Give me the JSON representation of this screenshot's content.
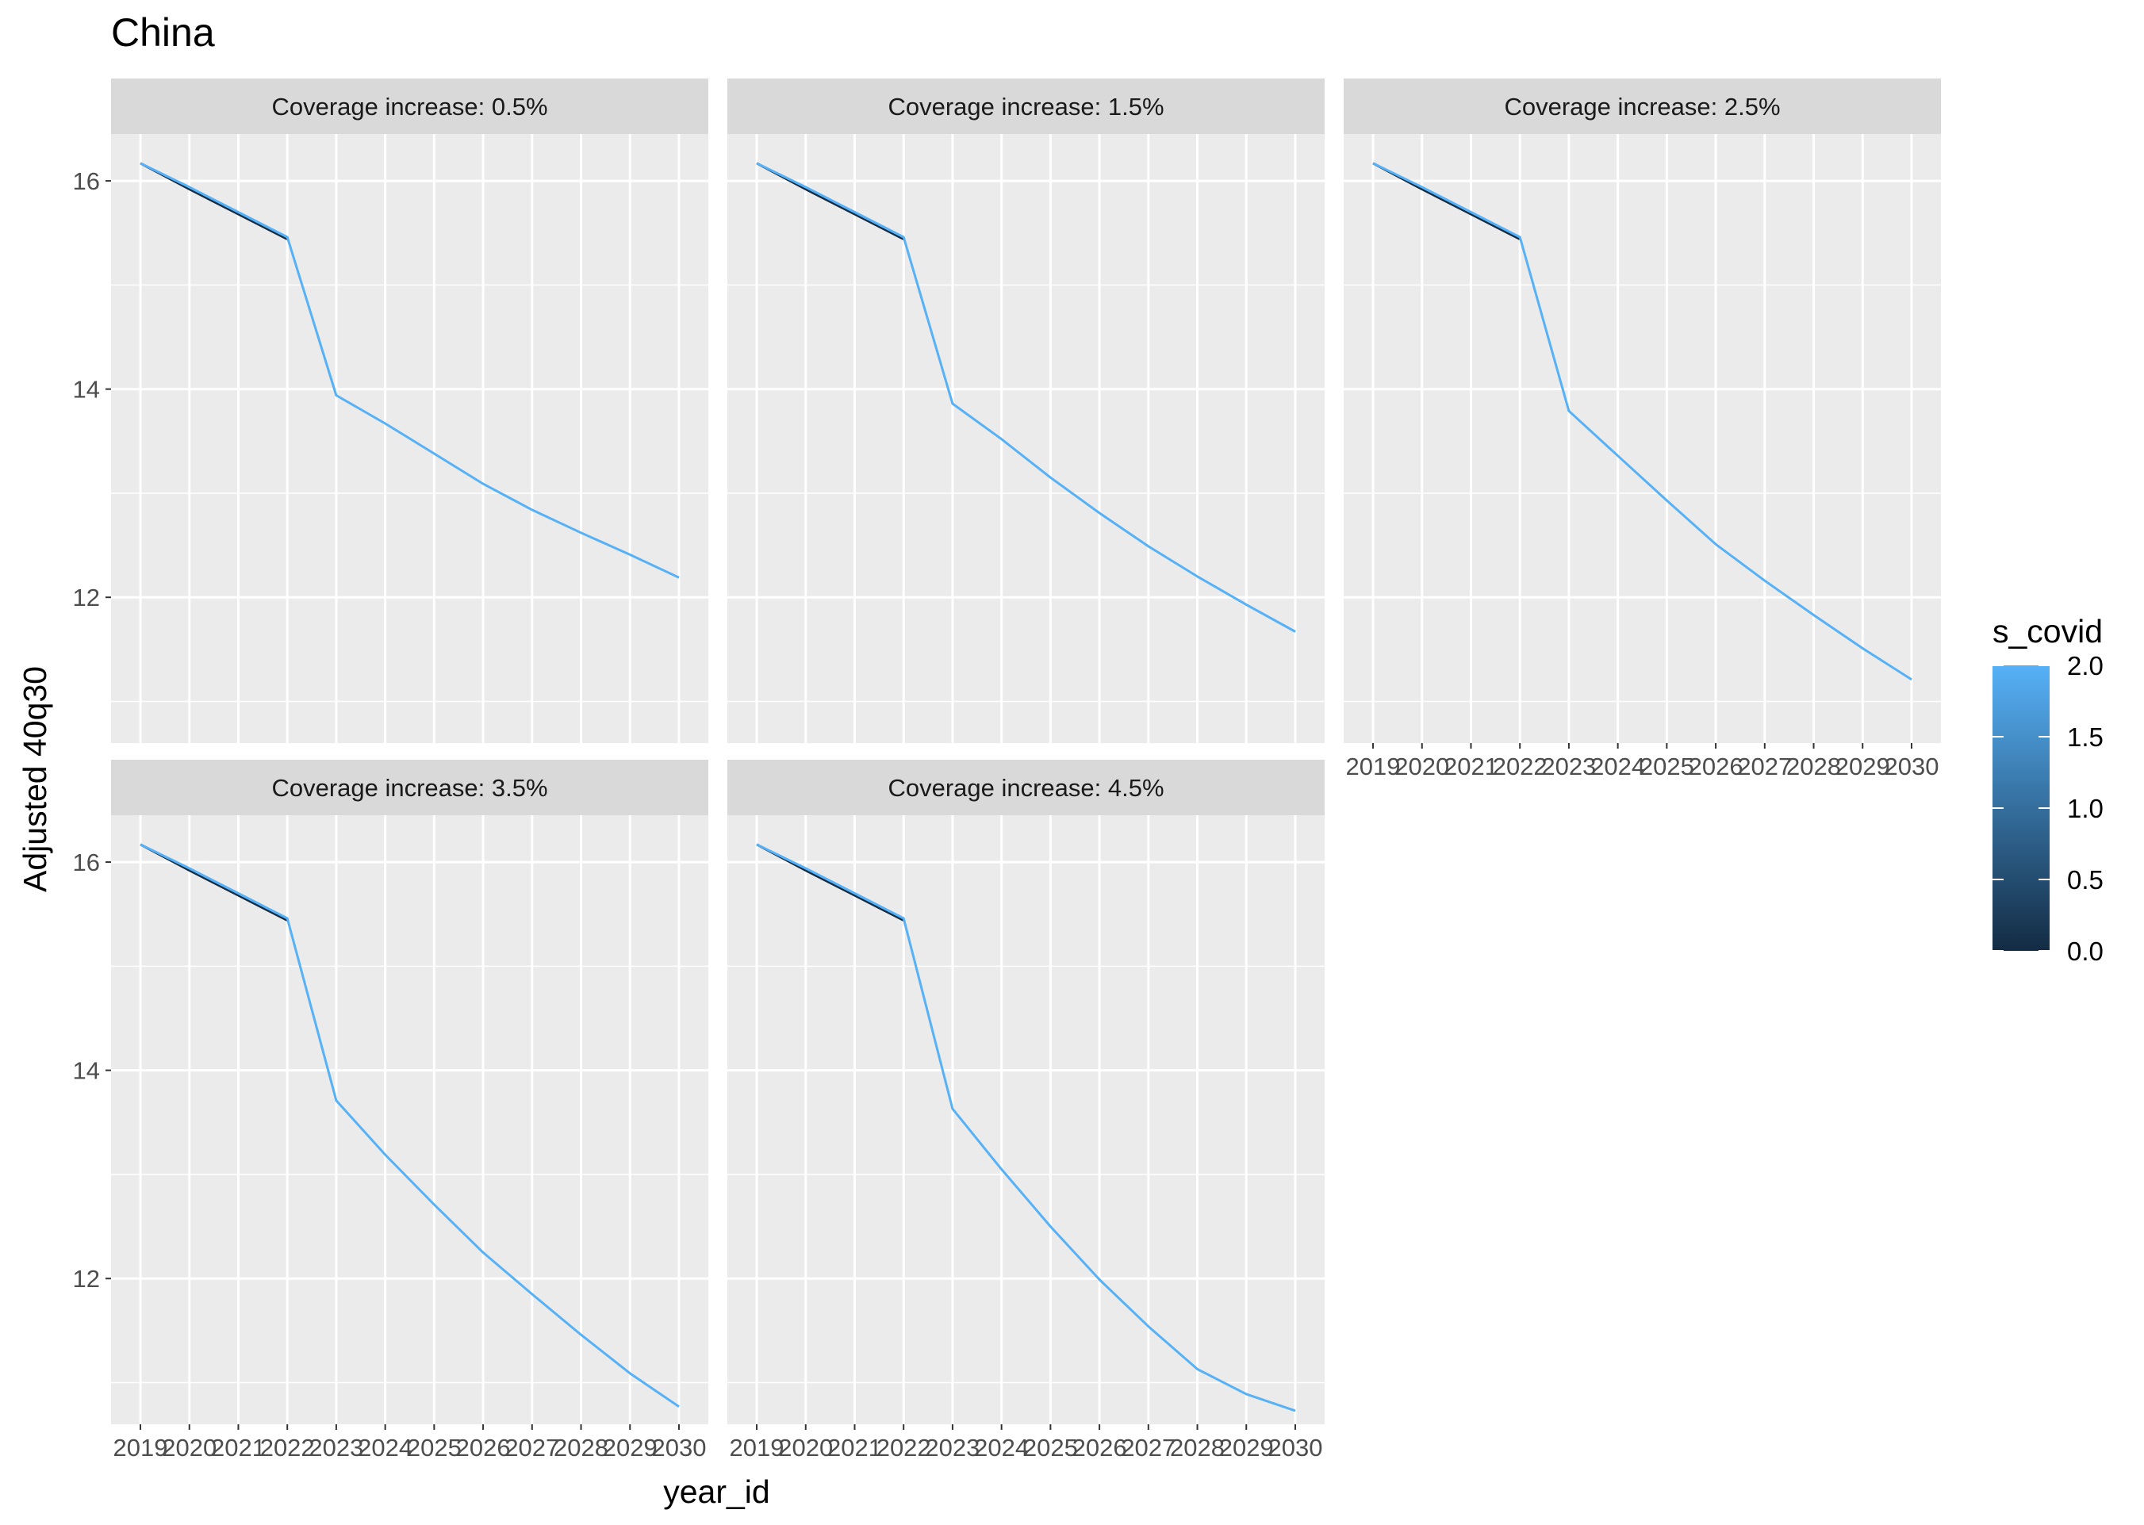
{
  "chart_data": {
    "type": "line",
    "title": "China",
    "xlabel": "year_id",
    "ylabel": "Adjusted 40q30",
    "x": [
      2019,
      2020,
      2021,
      2022,
      2023,
      2024,
      2025,
      2026,
      2027,
      2028,
      2029,
      2030
    ],
    "x_tick_labels": [
      "2019",
      "2020",
      "2021",
      "2022",
      "2023",
      "2024",
      "2025",
      "2026",
      "2027",
      "2028",
      "2029",
      "2030"
    ],
    "xlim": [
      2018.4,
      2030.6
    ],
    "ylim": [
      10.6,
      16.45
    ],
    "y_ticks": [
      12,
      14,
      16
    ],
    "y_tick_labels": [
      "12",
      "14",
      "16"
    ],
    "grid": true,
    "facet_layout": "3 columns x 2 rows",
    "panels": [
      {
        "strip": "Coverage increase: 0.5%",
        "series": [
          {
            "s_covid": 0,
            "x": [
              2019,
              2020,
              2021,
              2022
            ],
            "values": [
              16.17,
              15.92,
              15.68,
              15.44
            ]
          },
          {
            "s_covid": 2,
            "x": [
              2019,
              2020,
              2021,
              2022,
              2023,
              2024,
              2025,
              2026,
              2027,
              2028,
              2029,
              2030
            ],
            "values": [
              16.17,
              15.94,
              15.7,
              15.46,
              13.94,
              13.67,
              13.38,
              13.09,
              12.84,
              12.62,
              12.41,
              12.19
            ]
          }
        ]
      },
      {
        "strip": "Coverage increase: 1.5%",
        "series": [
          {
            "s_covid": 0,
            "x": [
              2019,
              2020,
              2021,
              2022
            ],
            "values": [
              16.17,
              15.92,
              15.68,
              15.44
            ]
          },
          {
            "s_covid": 2,
            "x": [
              2019,
              2020,
              2021,
              2022,
              2023,
              2024,
              2025,
              2026,
              2027,
              2028,
              2029,
              2030
            ],
            "values": [
              16.17,
              15.94,
              15.7,
              15.46,
              13.86,
              13.52,
              13.15,
              12.81,
              12.49,
              12.2,
              11.93,
              11.67
            ]
          }
        ]
      },
      {
        "strip": "Coverage increase: 2.5%",
        "series": [
          {
            "s_covid": 0,
            "x": [
              2019,
              2020,
              2021,
              2022
            ],
            "values": [
              16.17,
              15.92,
              15.68,
              15.44
            ]
          },
          {
            "s_covid": 2,
            "x": [
              2019,
              2020,
              2021,
              2022,
              2023,
              2024,
              2025,
              2026,
              2027,
              2028,
              2029,
              2030
            ],
            "values": [
              16.17,
              15.94,
              15.7,
              15.46,
              13.79,
              13.36,
              12.93,
              12.51,
              12.16,
              11.83,
              11.51,
              11.21
            ]
          }
        ]
      },
      {
        "strip": "Coverage increase: 3.5%",
        "series": [
          {
            "s_covid": 0,
            "x": [
              2019,
              2020,
              2021,
              2022
            ],
            "values": [
              16.17,
              15.92,
              15.68,
              15.44
            ]
          },
          {
            "s_covid": 2,
            "x": [
              2019,
              2020,
              2021,
              2022,
              2023,
              2024,
              2025,
              2026,
              2027,
              2028,
              2029,
              2030
            ],
            "values": [
              16.17,
              15.94,
              15.7,
              15.46,
              13.71,
              13.19,
              12.71,
              12.25,
              11.85,
              11.46,
              11.09,
              10.77
            ]
          }
        ]
      },
      {
        "strip": "Coverage increase: 4.5%",
        "series": [
          {
            "s_covid": 0,
            "x": [
              2019,
              2020,
              2021,
              2022
            ],
            "values": [
              16.17,
              15.92,
              15.68,
              15.44
            ]
          },
          {
            "s_covid": 2,
            "x": [
              2019,
              2020,
              2021,
              2022,
              2023,
              2024,
              2025,
              2026,
              2027,
              2028,
              2029,
              2030
            ],
            "values": [
              16.17,
              15.94,
              15.7,
              15.46,
              13.63,
              13.05,
              12.5,
              11.99,
              11.54,
              11.13,
              10.89,
              10.73
            ]
          }
        ]
      }
    ],
    "legend": {
      "title": "s_covid",
      "placement": "right",
      "type": "continuous-colorbar",
      "range": [
        0.0,
        2.0
      ],
      "ticks": [
        0.0,
        0.5,
        1.0,
        1.5,
        2.0
      ],
      "tick_labels": [
        "0.0",
        "0.5",
        "1.0",
        "1.5",
        "2.0"
      ],
      "low_color": "#132B43",
      "high_color": "#56B1F7"
    },
    "colors": {
      "panel_background": "#EBEBEB",
      "strip_background": "#D9D9D9",
      "grid": "#FFFFFF"
    }
  }
}
